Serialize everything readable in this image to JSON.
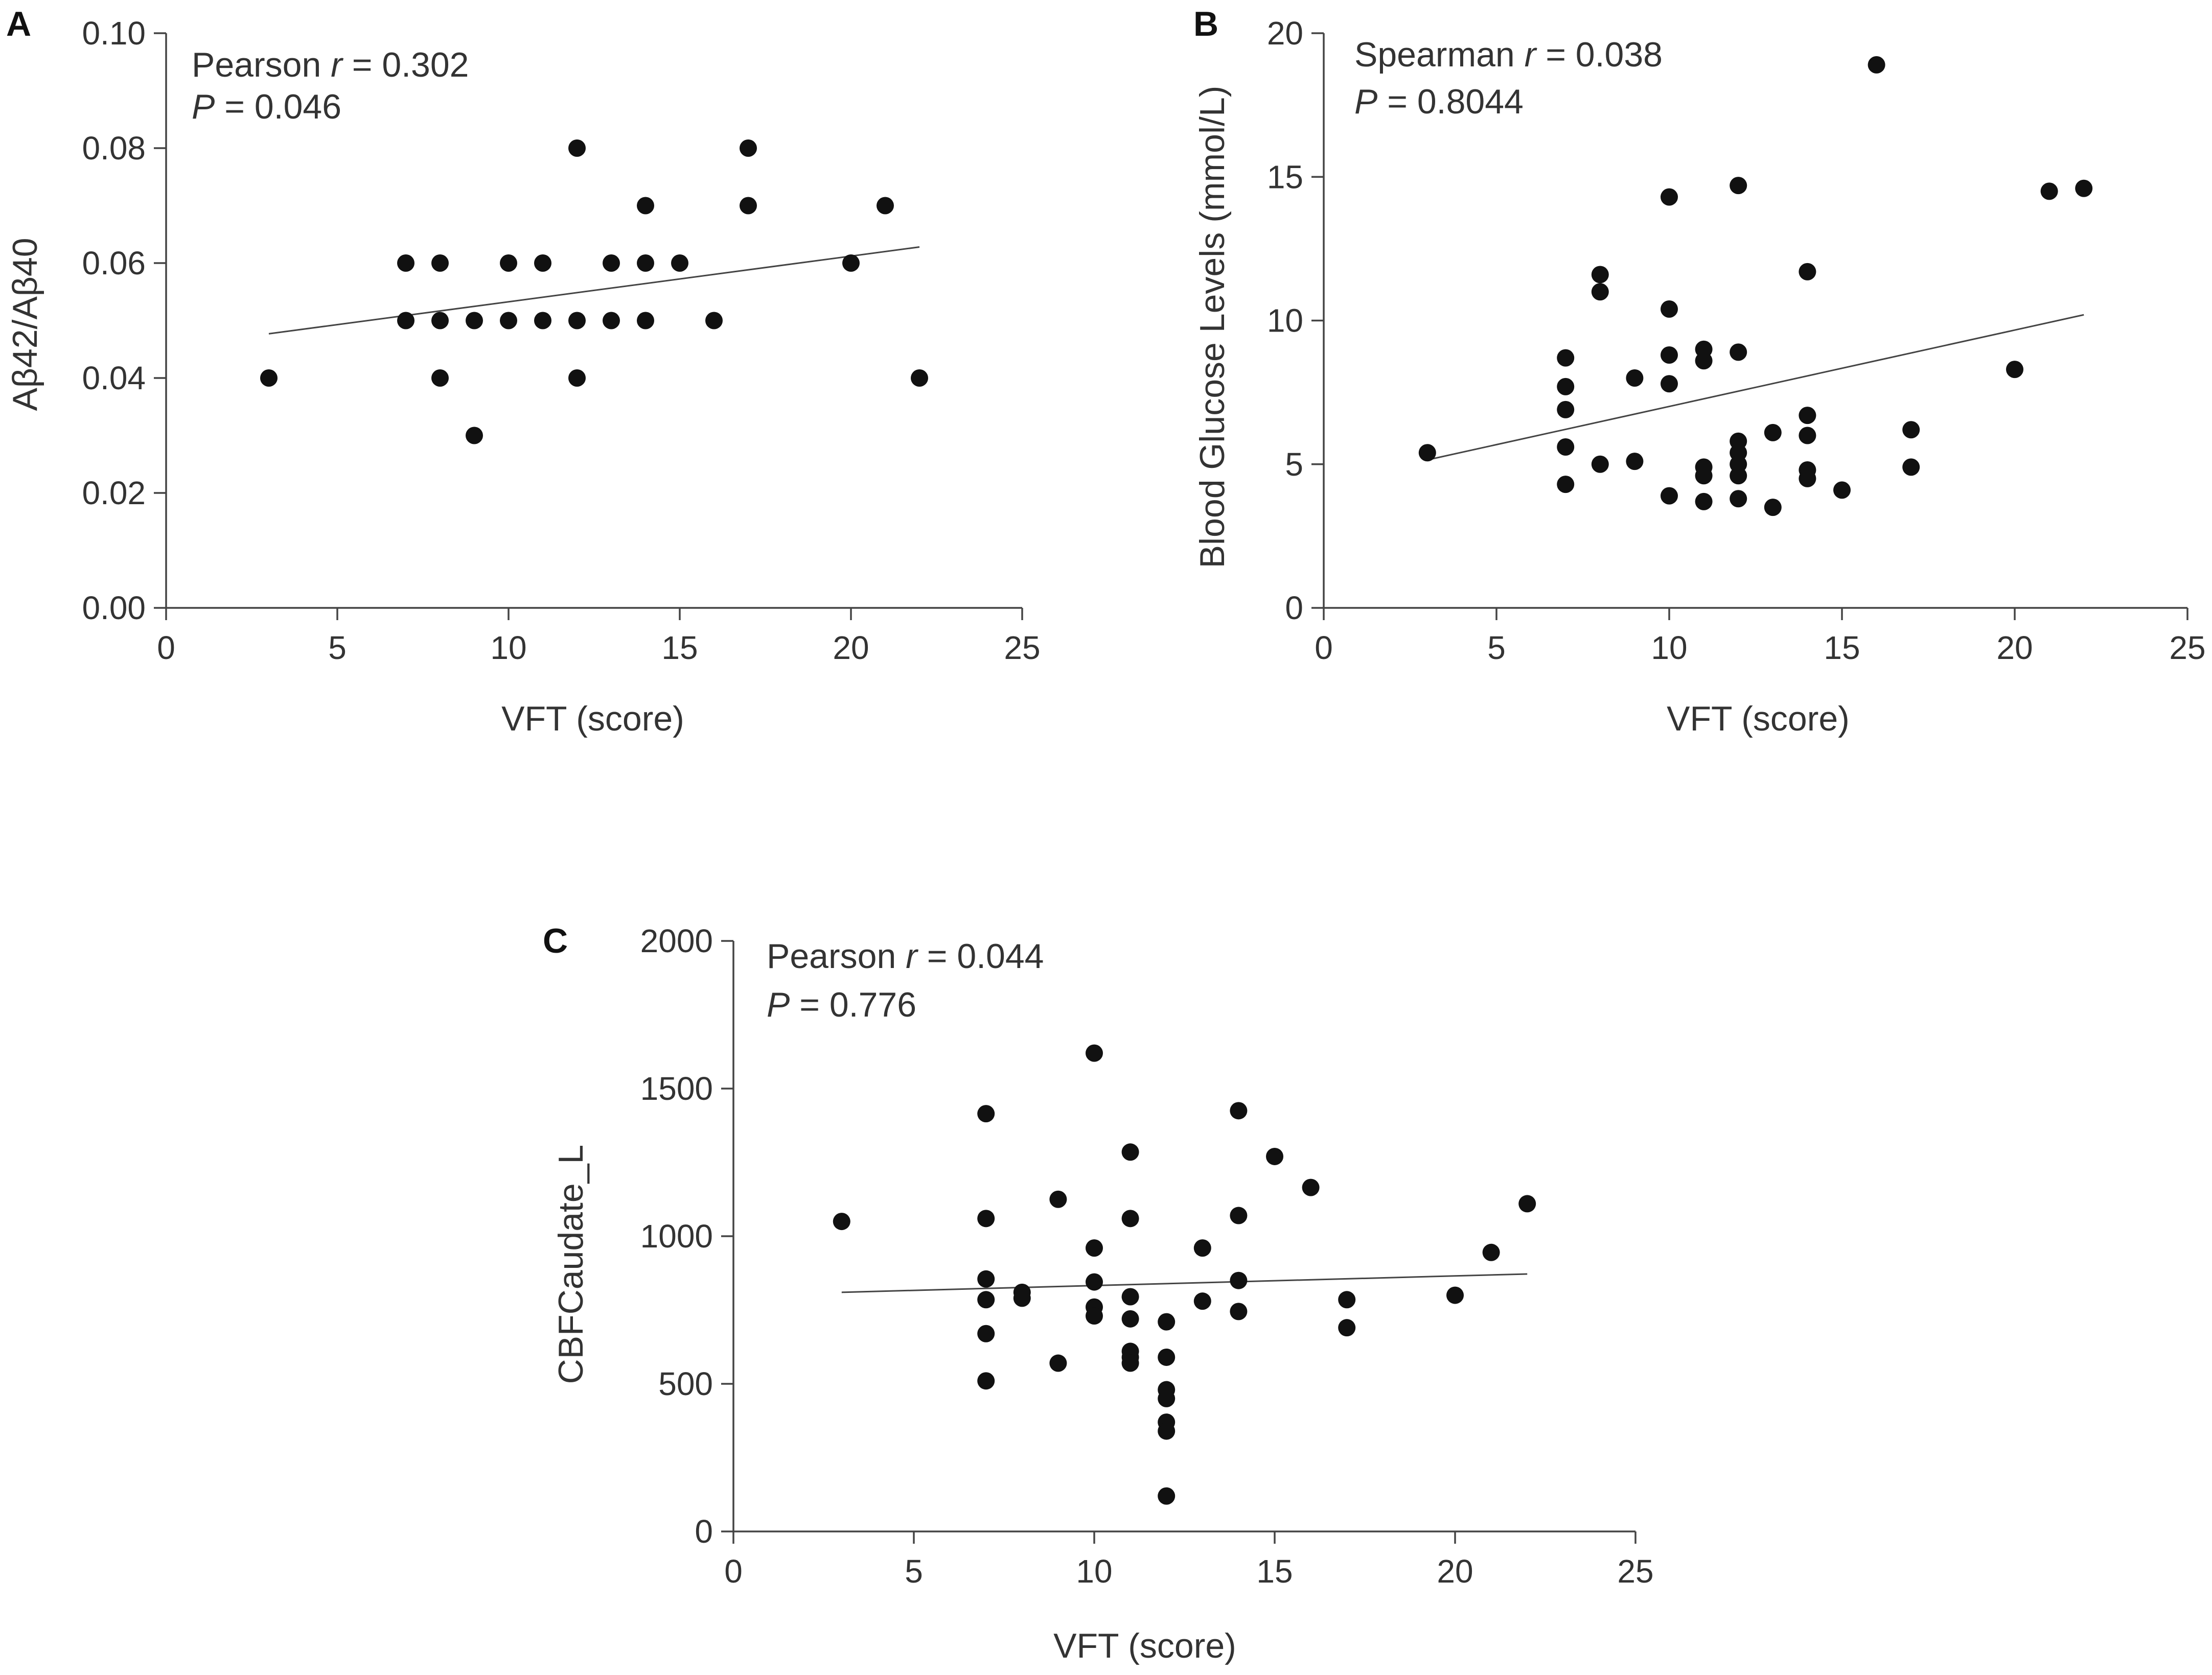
{
  "chart_data": [
    {
      "panel": "A",
      "type": "scatter",
      "xlabel": "VFT (score)",
      "ylabel": "Aβ42/Aβ40",
      "xlim": [
        0,
        25
      ],
      "ylim": [
        0,
        0.1
      ],
      "xticks": [
        0,
        5,
        10,
        15,
        20,
        25
      ],
      "yticks": [
        0.0,
        0.02,
        0.04,
        0.06,
        0.08,
        0.1
      ],
      "ytick_labels": [
        "0.00",
        "0.02",
        "0.04",
        "0.06",
        "0.08",
        "0.10"
      ],
      "annotation": {
        "stat_name": "Pearson ",
        "stat_sym": "r",
        "stat_value": " = 0.302",
        "p_sym": "P",
        "p_value": " = 0.046"
      },
      "fit_line": {
        "x": [
          3,
          22
        ],
        "y": [
          0.0477,
          0.0628
        ]
      },
      "points": [
        [
          3,
          0.04
        ],
        [
          7,
          0.06
        ],
        [
          7,
          0.05
        ],
        [
          8,
          0.06
        ],
        [
          8,
          0.05
        ],
        [
          8,
          0.04
        ],
        [
          9,
          0.05
        ],
        [
          9,
          0.03
        ],
        [
          10,
          0.06
        ],
        [
          10,
          0.05
        ],
        [
          11,
          0.06
        ],
        [
          11,
          0.05
        ],
        [
          12,
          0.08
        ],
        [
          12,
          0.05
        ],
        [
          12,
          0.04
        ],
        [
          13,
          0.06
        ],
        [
          13,
          0.05
        ],
        [
          14,
          0.07
        ],
        [
          14,
          0.06
        ],
        [
          14,
          0.05
        ],
        [
          15,
          0.06
        ],
        [
          16,
          0.05
        ],
        [
          17,
          0.08
        ],
        [
          17,
          0.07
        ],
        [
          20,
          0.06
        ],
        [
          21,
          0.07
        ],
        [
          22,
          0.04
        ]
      ]
    },
    {
      "panel": "B",
      "type": "scatter",
      "xlabel": "VFT (score)",
      "ylabel": "Blood Glucose Levels (mmol/L)",
      "xlim": [
        0,
        25
      ],
      "ylim": [
        0,
        20
      ],
      "xticks": [
        0,
        5,
        10,
        15,
        20,
        25
      ],
      "yticks": [
        0,
        5,
        10,
        15,
        20
      ],
      "ytick_labels": [
        "0",
        "5",
        "10",
        "15",
        "20"
      ],
      "annotation": {
        "stat_name": "Spearman ",
        "stat_sym": "r",
        "stat_value": " = 0.038",
        "p_sym": "P",
        "p_value": " = 0.8044"
      },
      "fit_line": {
        "x": [
          3,
          22
        ],
        "y": [
          5.15,
          10.2
        ]
      },
      "points": [
        [
          3,
          5.4
        ],
        [
          7,
          8.7
        ],
        [
          7,
          7.7
        ],
        [
          7,
          6.9
        ],
        [
          7,
          5.6
        ],
        [
          7,
          4.3
        ],
        [
          8,
          11.6
        ],
        [
          8,
          11.0
        ],
        [
          8,
          5.0
        ],
        [
          9,
          8.0
        ],
        [
          9,
          5.1
        ],
        [
          10,
          14.3
        ],
        [
          10,
          10.4
        ],
        [
          10,
          8.8
        ],
        [
          10,
          7.8
        ],
        [
          10,
          3.9
        ],
        [
          11,
          9.0
        ],
        [
          11,
          8.6
        ],
        [
          11,
          4.9
        ],
        [
          11,
          4.6
        ],
        [
          11,
          3.7
        ],
        [
          12,
          14.7
        ],
        [
          12,
          8.9
        ],
        [
          12,
          5.8
        ],
        [
          12,
          5.4
        ],
        [
          12,
          5.0
        ],
        [
          12,
          4.6
        ],
        [
          12,
          3.8
        ],
        [
          13,
          6.1
        ],
        [
          13,
          3.5
        ],
        [
          14,
          11.7
        ],
        [
          14,
          6.7
        ],
        [
          14,
          6.0
        ],
        [
          14,
          4.8
        ],
        [
          14,
          4.5
        ],
        [
          15,
          4.1
        ],
        [
          16,
          18.9
        ],
        [
          17,
          6.2
        ],
        [
          17,
          4.9
        ],
        [
          20,
          8.3
        ],
        [
          21,
          14.5
        ],
        [
          22,
          14.6
        ]
      ]
    },
    {
      "panel": "C",
      "type": "scatter",
      "xlabel": "VFT (score)",
      "ylabel": "CBFCaudate_L",
      "xlim": [
        0,
        25
      ],
      "ylim": [
        0,
        2000
      ],
      "xticks": [
        0,
        5,
        10,
        15,
        20,
        25
      ],
      "yticks": [
        0,
        500,
        1000,
        1500,
        2000
      ],
      "ytick_labels": [
        "0",
        "500",
        "1000",
        "1500",
        "2000"
      ],
      "annotation": {
        "stat_name": "Pearson ",
        "stat_sym": "r",
        "stat_value": " = 0.044",
        "p_sym": "P",
        "p_value": " = 0.776"
      },
      "fit_line": {
        "x": [
          3,
          22
        ],
        "y": [
          810,
          872
        ]
      },
      "points": [
        [
          3,
          1050
        ],
        [
          7,
          1415
        ],
        [
          7,
          1060
        ],
        [
          7,
          855
        ],
        [
          7,
          785
        ],
        [
          7,
          670
        ],
        [
          7,
          510
        ],
        [
          8,
          810
        ],
        [
          8,
          790
        ],
        [
          9,
          1125
        ],
        [
          9,
          570
        ],
        [
          10,
          1620
        ],
        [
          10,
          960
        ],
        [
          10,
          845
        ],
        [
          10,
          760
        ],
        [
          10,
          730
        ],
        [
          11,
          1285
        ],
        [
          11,
          1060
        ],
        [
          11,
          795
        ],
        [
          11,
          720
        ],
        [
          11,
          610
        ],
        [
          11,
          590
        ],
        [
          11,
          570
        ],
        [
          12,
          710
        ],
        [
          12,
          590
        ],
        [
          12,
          480
        ],
        [
          12,
          450
        ],
        [
          12,
          370
        ],
        [
          12,
          340
        ],
        [
          12,
          120
        ],
        [
          13,
          960
        ],
        [
          13,
          780
        ],
        [
          14,
          1425
        ],
        [
          14,
          1070
        ],
        [
          14,
          850
        ],
        [
          14,
          745
        ],
        [
          15,
          1270
        ],
        [
          16,
          1165
        ],
        [
          17,
          785
        ],
        [
          17,
          690
        ],
        [
          20,
          800
        ],
        [
          21,
          945
        ],
        [
          22,
          1110
        ]
      ]
    }
  ]
}
